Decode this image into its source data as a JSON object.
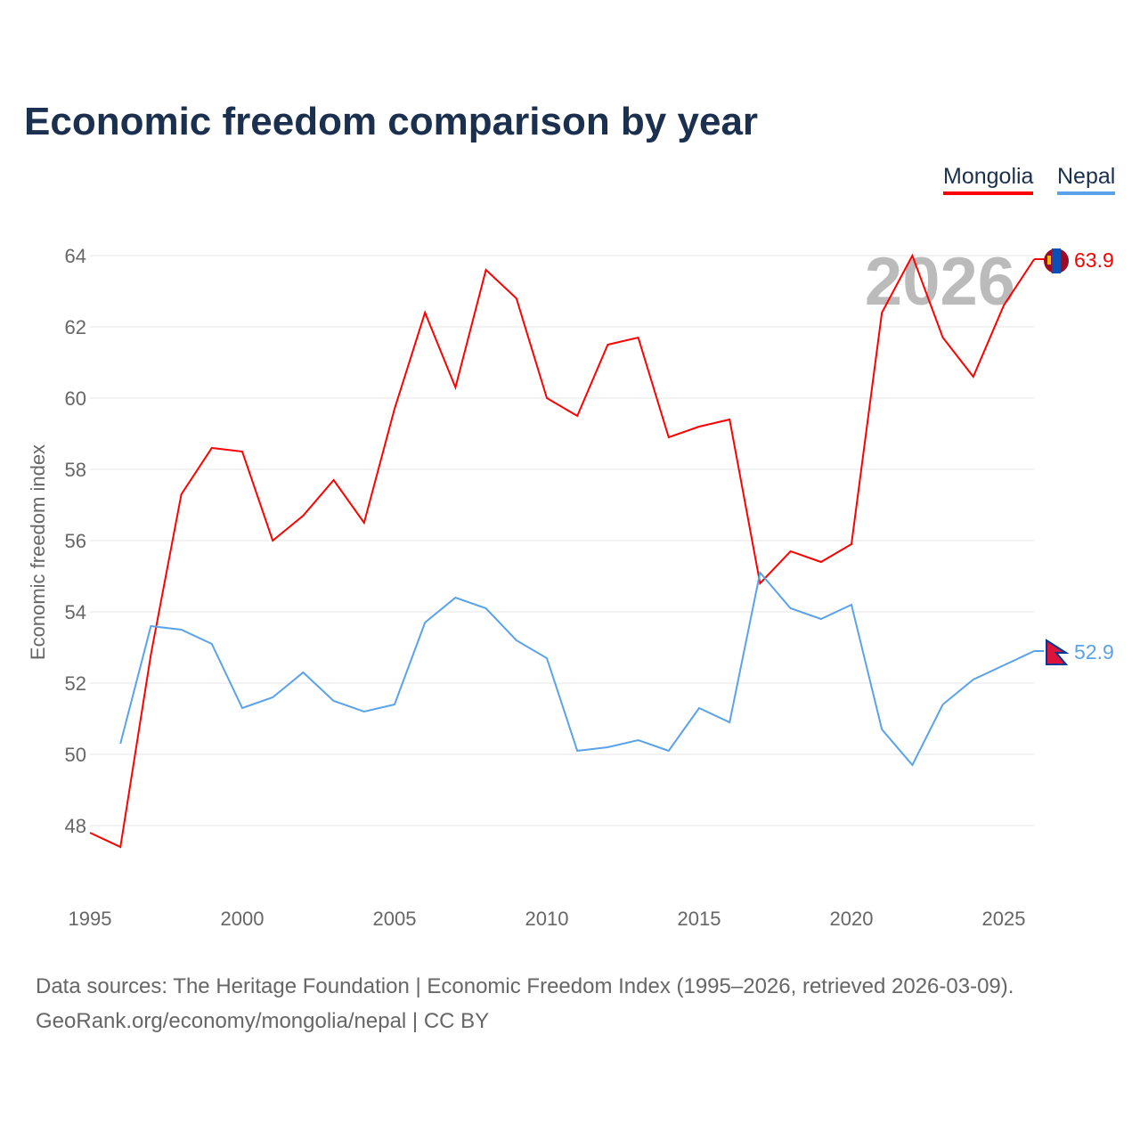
{
  "title": "Economic freedom comparison by year",
  "source_line1": "Data sources: The Heritage Foundation | Economic Freedom Index (1995–2026, retrieved 2026-03-09).",
  "source_line2": "GeoRank.org/economy/mongolia/nepal | CC BY",
  "chart_data": {
    "type": "line",
    "title": "Economic freedom comparison by year",
    "xlabel": "",
    "ylabel": "Economic freedom index",
    "xlim": [
      1995,
      2026
    ],
    "ylim": [
      46.5,
      65
    ],
    "yticks": [
      48,
      50,
      52,
      54,
      56,
      58,
      60,
      62,
      64
    ],
    "xticks": [
      1995,
      2000,
      2005,
      2010,
      2015,
      2020,
      2025
    ],
    "year_watermark": "2026",
    "legend_position": "top-right",
    "series": [
      {
        "name": "Mongolia",
        "color": "#ff0000",
        "end_label": "63.9",
        "flag": "mongolia-flag",
        "x": [
          1995,
          1996,
          1997,
          1998,
          1999,
          2000,
          2001,
          2002,
          2003,
          2004,
          2005,
          2006,
          2007,
          2008,
          2009,
          2010,
          2011,
          2012,
          2013,
          2014,
          2015,
          2016,
          2017,
          2018,
          2019,
          2020,
          2021,
          2022,
          2023,
          2024,
          2025,
          2026
        ],
        "values": [
          47.8,
          47.4,
          52.8,
          57.3,
          58.6,
          58.5,
          56.0,
          56.7,
          57.7,
          56.5,
          59.7,
          62.4,
          60.3,
          63.6,
          62.8,
          60.0,
          59.5,
          61.5,
          61.7,
          58.9,
          59.2,
          59.4,
          54.8,
          55.7,
          55.4,
          55.9,
          62.4,
          64.0,
          61.7,
          60.6,
          62.6,
          63.9
        ]
      },
      {
        "name": "Nepal",
        "color": "#5aa3ea",
        "end_label": "52.9",
        "flag": "nepal-flag",
        "x": [
          1996,
          1997,
          1998,
          1999,
          2000,
          2001,
          2002,
          2003,
          2004,
          2005,
          2006,
          2007,
          2008,
          2009,
          2010,
          2011,
          2012,
          2013,
          2014,
          2015,
          2016,
          2017,
          2018,
          2019,
          2020,
          2021,
          2022,
          2023,
          2024,
          2025,
          2026
        ],
        "values": [
          50.3,
          53.6,
          53.5,
          53.1,
          51.3,
          51.6,
          52.3,
          51.5,
          51.2,
          51.4,
          53.7,
          54.4,
          54.1,
          53.2,
          52.7,
          50.1,
          50.2,
          50.4,
          50.1,
          51.3,
          50.9,
          55.1,
          54.1,
          53.8,
          54.2,
          50.7,
          49.7,
          51.4,
          52.1,
          52.5,
          52.9
        ]
      }
    ]
  }
}
